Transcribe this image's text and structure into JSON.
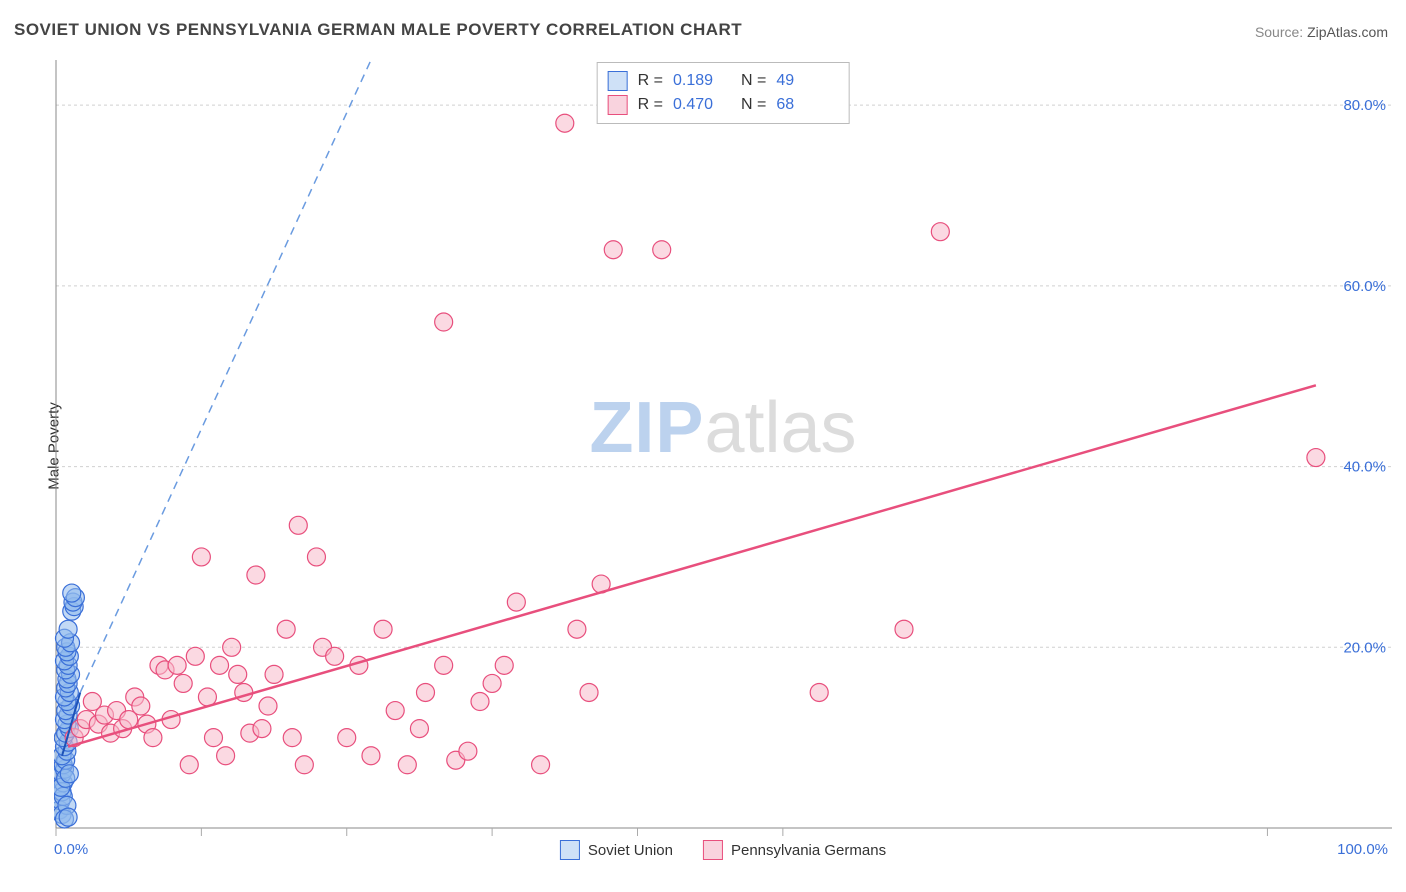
{
  "title": "SOVIET UNION VS PENNSYLVANIA GERMAN MALE POVERTY CORRELATION CHART",
  "source_label": "Source:",
  "source_value": "ZipAtlas.com",
  "ylabel": "Male Poverty",
  "watermark": {
    "part1": "ZIP",
    "part2": "atlas"
  },
  "chart": {
    "type": "scatter",
    "background_color": "#ffffff",
    "grid_color": "#d0d0d0",
    "axis_color": "#888888",
    "label_color": "#3a6fd8",
    "label_fontsize": 15,
    "marker_radius": 9,
    "marker_fill_opacity": 0.55,
    "xlim": [
      0,
      105
    ],
    "ylim": [
      0,
      85
    ],
    "x_ticks": [
      0,
      12,
      24,
      36,
      48,
      60,
      100
    ],
    "x_tick_labels": {
      "0": "0.0%",
      "100": "100.0%"
    },
    "y_ticks": [
      20,
      40,
      60,
      80
    ],
    "y_tick_labels": {
      "20": "20.0%",
      "40": "40.0%",
      "60": "60.0%",
      "80": "80.0%"
    },
    "legend_top": [
      {
        "swatch": "blue",
        "r_label": "R  =",
        "r_value": "0.189",
        "n_label": "N  =",
        "n_value": "49"
      },
      {
        "swatch": "pink",
        "r_label": "R  =",
        "r_value": "0.470",
        "n_label": "N  =",
        "n_value": "68"
      }
    ],
    "legend_bottom": [
      {
        "swatch": "blue",
        "label": "Soviet Union"
      },
      {
        "swatch": "pink",
        "label": "Pennsylvania Germans"
      }
    ],
    "series": [
      {
        "name": "Soviet Union",
        "marker_fill": "#8fb9ec",
        "marker_stroke": "#3a6fd8",
        "trend": {
          "color": "#1d52b8",
          "width": 2,
          "x1": 0.5,
          "y1": 8,
          "x2": 2.0,
          "y2": 15,
          "extrapolate_dash": {
            "color": "#6a9be0",
            "dash": "8 6",
            "x2": 26,
            "y2": 85
          }
        },
        "points": [
          [
            0.3,
            2
          ],
          [
            0.4,
            3
          ],
          [
            0.5,
            4
          ],
          [
            0.6,
            5
          ],
          [
            0.5,
            6
          ],
          [
            0.7,
            6.5
          ],
          [
            0.6,
            7
          ],
          [
            0.8,
            7.5
          ],
          [
            0.5,
            8
          ],
          [
            0.9,
            8.5
          ],
          [
            0.7,
            9
          ],
          [
            1.0,
            9.5
          ],
          [
            0.6,
            10
          ],
          [
            0.8,
            10.5
          ],
          [
            1.1,
            11
          ],
          [
            0.9,
            11.5
          ],
          [
            0.7,
            12
          ],
          [
            1.0,
            12.5
          ],
          [
            0.8,
            13
          ],
          [
            1.2,
            13.5
          ],
          [
            0.9,
            14
          ],
          [
            0.7,
            14.5
          ],
          [
            1.1,
            15
          ],
          [
            0.8,
            15.5
          ],
          [
            1.0,
            16
          ],
          [
            0.9,
            16.5
          ],
          [
            1.2,
            17
          ],
          [
            0.8,
            17.5
          ],
          [
            1.0,
            18
          ],
          [
            0.7,
            18.5
          ],
          [
            1.1,
            19
          ],
          [
            0.9,
            19.5
          ],
          [
            0.8,
            20
          ],
          [
            1.2,
            20.5
          ],
          [
            0.7,
            21
          ],
          [
            1.0,
            22
          ],
          [
            1.3,
            24
          ],
          [
            1.5,
            24.5
          ],
          [
            1.4,
            25
          ],
          [
            1.6,
            25.5
          ],
          [
            1.3,
            26
          ],
          [
            0.6,
            3.5
          ],
          [
            0.4,
            4.5
          ],
          [
            0.8,
            5.5
          ],
          [
            0.5,
            1.5
          ],
          [
            0.9,
            2.5
          ],
          [
            1.1,
            6
          ],
          [
            0.7,
            1
          ],
          [
            1.0,
            1.2
          ]
        ]
      },
      {
        "name": "Pennsylvania Germans",
        "marker_fill": "#f7b9ca",
        "marker_stroke": "#e84f7d",
        "trend": {
          "color": "#e84f7d",
          "width": 2.5,
          "x1": 1,
          "y1": 9,
          "x2": 104,
          "y2": 49
        },
        "points": [
          [
            1.5,
            10
          ],
          [
            2,
            11
          ],
          [
            2.5,
            12
          ],
          [
            3,
            14
          ],
          [
            3.5,
            11.5
          ],
          [
            4,
            12.5
          ],
          [
            4.5,
            10.5
          ],
          [
            5,
            13
          ],
          [
            5.5,
            11
          ],
          [
            6,
            12
          ],
          [
            6.5,
            14.5
          ],
          [
            7,
            13.5
          ],
          [
            7.5,
            11.5
          ],
          [
            8,
            10
          ],
          [
            8.5,
            18
          ],
          [
            9,
            17.5
          ],
          [
            9.5,
            12
          ],
          [
            10,
            18
          ],
          [
            10.5,
            16
          ],
          [
            11,
            7
          ],
          [
            11.5,
            19
          ],
          [
            12,
            30
          ],
          [
            12.5,
            14.5
          ],
          [
            13,
            10
          ],
          [
            13.5,
            18
          ],
          [
            14,
            8
          ],
          [
            14.5,
            20
          ],
          [
            15,
            17
          ],
          [
            15.5,
            15
          ],
          [
            16,
            10.5
          ],
          [
            16.5,
            28
          ],
          [
            17,
            11
          ],
          [
            17.5,
            13.5
          ],
          [
            18,
            17
          ],
          [
            19,
            22
          ],
          [
            19.5,
            10
          ],
          [
            20,
            33.5
          ],
          [
            20.5,
            7
          ],
          [
            21.5,
            30
          ],
          [
            22,
            20
          ],
          [
            23,
            19
          ],
          [
            24,
            10
          ],
          [
            25,
            18
          ],
          [
            26,
            8
          ],
          [
            27,
            22
          ],
          [
            28,
            13
          ],
          [
            29,
            7
          ],
          [
            30,
            11
          ],
          [
            30.5,
            15
          ],
          [
            32,
            18
          ],
          [
            33,
            7.5
          ],
          [
            34,
            8.5
          ],
          [
            35,
            14
          ],
          [
            36,
            16
          ],
          [
            37,
            18
          ],
          [
            38,
            25
          ],
          [
            40,
            7
          ],
          [
            43,
            22
          ],
          [
            44,
            15
          ],
          [
            45,
            27
          ],
          [
            46,
            64
          ],
          [
            50,
            64
          ],
          [
            42,
            78
          ],
          [
            32,
            56
          ],
          [
            63,
            15
          ],
          [
            70,
            22
          ],
          [
            73,
            66
          ],
          [
            104,
            41
          ]
        ]
      }
    ]
  }
}
